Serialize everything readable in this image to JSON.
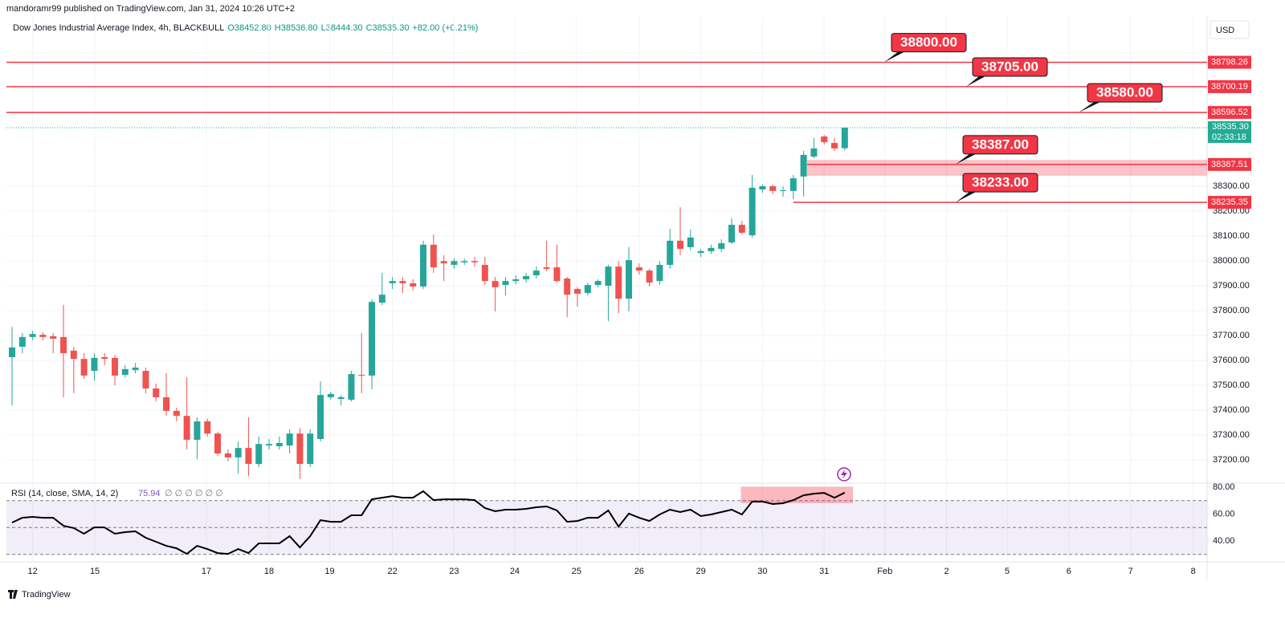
{
  "header": {
    "published": "mandoramr99 published on TradingView.com, Jan 31, 2024 10:26 UTC+2",
    "symbol": "Dow Jones Industrial Average Index, 4h, BLACKBULL",
    "ohlc": [
      "O38452.80",
      "H38536.80",
      "L38444.30",
      "C38535.30",
      "+82.00 (+0.21%)"
    ]
  },
  "currency": "USD",
  "footer": "TradingView",
  "chart_data": [
    {
      "type": "candlestick",
      "up_color": "#26a69a",
      "down_color": "#ef5350",
      "open": [
        37613,
        37655,
        37694,
        37703,
        37697,
        37694,
        37639,
        37606,
        37558,
        37613,
        37610,
        37542,
        37561,
        37558,
        37487,
        37452,
        37397,
        37377,
        37281,
        37355,
        37306,
        37226,
        37210,
        37248,
        37184,
        37258,
        37255,
        37258,
        37306,
        37184,
        37284,
        37452,
        37445,
        37442,
        37542,
        37539,
        37832,
        37910,
        37919,
        37910,
        37897,
        38065,
        37999,
        37984,
        37994,
        37999,
        37984,
        37919,
        37903,
        37919,
        37926,
        37942,
        37974,
        37974,
        37929,
        37887,
        37871,
        37903,
        37900,
        37977,
        37848,
        37974,
        37961,
        37919,
        37984,
        38081,
        38055,
        38032,
        38039,
        38048,
        38074,
        38145,
        38103,
        38287,
        38300,
        38281,
        38281,
        38339,
        38419,
        38500,
        38474,
        38452.8
      ],
      "high": [
        37735,
        37710,
        37719,
        37713,
        37710,
        37823,
        37655,
        37629,
        37629,
        37629,
        37623,
        37581,
        37590,
        37571,
        37506,
        37548,
        37410,
        37532,
        37371,
        37365,
        37313,
        37242,
        37274,
        37371,
        37294,
        37284,
        37294,
        37323,
        37329,
        37323,
        37516,
        37474,
        37461,
        37558,
        37710,
        37845,
        37952,
        37935,
        37935,
        37926,
        38081,
        38106,
        38023,
        38010,
        38010,
        38016,
        38016,
        37935,
        37935,
        37942,
        37952,
        37977,
        38081,
        38065,
        37935,
        37894,
        37913,
        37926,
        37984,
        37999,
        38055,
        37990,
        37968,
        37999,
        38129,
        38216,
        38126,
        38048,
        38065,
        38087,
        38171,
        38161,
        38345,
        38306,
        38306,
        38300,
        38345,
        38442,
        38494,
        38506,
        38494,
        38536.8
      ],
      "low": [
        37419,
        37629,
        37681,
        37681,
        37629,
        37452,
        37468,
        37526,
        37519,
        37581,
        37500,
        37532,
        37548,
        37468,
        37435,
        37377,
        37355,
        37242,
        37203,
        37294,
        37216,
        37194,
        37145,
        37135,
        37171,
        37242,
        37242,
        37226,
        37123,
        37171,
        37274,
        37442,
        37419,
        37435,
        37468,
        37484,
        37823,
        37887,
        37871,
        37881,
        37887,
        37952,
        37919,
        37968,
        37984,
        37977,
        37903,
        37797,
        37861,
        37906,
        37913,
        37929,
        37958,
        37913,
        37774,
        37816,
        37861,
        37894,
        37758,
        37790,
        37797,
        37945,
        37897,
        37903,
        37968,
        38023,
        38042,
        38016,
        38029,
        38035,
        38068,
        38106,
        38094,
        38274,
        38268,
        38258,
        38248,
        38258,
        38413,
        38468,
        38442,
        38444.3
      ],
      "close": [
        37652,
        37694,
        37706,
        37694,
        37687,
        37629,
        37606,
        37539,
        37610,
        37606,
        37539,
        37565,
        37571,
        37487,
        37452,
        37397,
        37377,
        37281,
        37355,
        37306,
        37226,
        37210,
        37248,
        37184,
        37264,
        37264,
        37268,
        37306,
        37184,
        37306,
        37461,
        37465,
        37452,
        37545,
        37539,
        37835,
        37864,
        37919,
        37910,
        37897,
        38065,
        37974,
        37990,
        37999,
        37999,
        37994,
        37919,
        37894,
        37919,
        37926,
        37939,
        37961,
        37968,
        37919,
        37864,
        37868,
        37903,
        37919,
        37977,
        37848,
        38003,
        37961,
        37913,
        37984,
        38081,
        38048,
        38094,
        38039,
        38052,
        38071,
        38145,
        38113,
        38294,
        38300,
        38281,
        38284,
        38332,
        38426,
        38452,
        38477,
        38452,
        38535.3
      ],
      "last_price_label": "38535.30",
      "countdown": "02:33:18",
      "last_color": "#22ab94",
      "ylim": [
        37113,
        38984
      ],
      "yticks": [
        {
          "value": 37200,
          "label": "37200.00"
        },
        {
          "value": 37300,
          "label": "37300.00"
        },
        {
          "value": 37400,
          "label": "37400.00"
        },
        {
          "value": 37500,
          "label": "37500.00"
        },
        {
          "value": 37600,
          "label": "37600.00"
        },
        {
          "value": 37700,
          "label": "37700.00"
        },
        {
          "value": 37800,
          "label": "37800.00"
        },
        {
          "value": 37900,
          "label": "37900.00"
        },
        {
          "value": 38000,
          "label": "38000.00"
        },
        {
          "value": 38100,
          "label": "38100.00"
        },
        {
          "value": 38200,
          "label": "38200.00"
        },
        {
          "value": 38300,
          "label": "38300.00"
        }
      ],
      "xlim": [
        -0.55,
        116.25
      ],
      "xticks": [
        {
          "value": 2,
          "label": "12"
        },
        {
          "value": 8.05,
          "label": "15"
        },
        {
          "value": 18.9,
          "label": "17"
        },
        {
          "value": 25,
          "label": "18"
        },
        {
          "value": 30.9,
          "label": "19"
        },
        {
          "value": 37,
          "label": "22"
        },
        {
          "value": 43,
          "label": "23"
        },
        {
          "value": 48.9,
          "label": "24"
        },
        {
          "value": 54.9,
          "label": "25"
        },
        {
          "value": 61,
          "label": "26"
        },
        {
          "value": 67,
          "label": "29"
        },
        {
          "value": 73,
          "label": "30"
        },
        {
          "value": 79,
          "label": "31"
        },
        {
          "value": 84.9,
          "label": "Feb"
        },
        {
          "value": 90.9,
          "label": "2"
        },
        {
          "value": 96.8,
          "label": "5"
        },
        {
          "value": 102.8,
          "label": "6"
        },
        {
          "value": 108.8,
          "label": "7"
        },
        {
          "value": 114.9,
          "label": "8"
        }
      ],
      "level_color": "#f23645",
      "levels": [
        {
          "value": 38798.26,
          "callout": "38800.00"
        },
        {
          "value": 38700.19,
          "callout": "38705.00"
        },
        {
          "value": 38596.52,
          "callout": "38580.00"
        },
        {
          "value": 38387.51,
          "callout": "38387.00"
        },
        {
          "value": 38235.35,
          "callout": "38233.00"
        }
      ],
      "zone": {
        "low": 38342,
        "high": 38406
      }
    },
    {
      "type": "line",
      "title": "RSI (14, close, SMA, 14, 2)",
      "current_label": "75.94",
      "inputs": "∅ ∅ ∅ ∅ ∅ ∅",
      "color": "#000000",
      "values": [
        53.7,
        57.3,
        57.9,
        57.3,
        57.3,
        51.3,
        49.6,
        45.4,
        50.1,
        50.1,
        45.4,
        46.6,
        47.2,
        42.4,
        39.4,
        36.4,
        34.6,
        30.4,
        36.4,
        34.0,
        31.0,
        30.4,
        34.0,
        31.0,
        38.2,
        38.2,
        38.2,
        43.6,
        35.2,
        43.6,
        55.5,
        54.3,
        54.3,
        59.1,
        59.1,
        71.0,
        72.2,
        73.4,
        72.2,
        72.2,
        77.0,
        70.4,
        71.0,
        71.0,
        71.0,
        70.4,
        64.5,
        62.1,
        63.3,
        63.3,
        63.9,
        65.1,
        65.7,
        62.7,
        54.3,
        54.9,
        57.3,
        57.3,
        62.7,
        50.7,
        60.3,
        57.3,
        54.9,
        59.7,
        63.3,
        61.5,
        63.3,
        58.5,
        59.7,
        61.5,
        63.3,
        59.7,
        69.3,
        69.3,
        67.5,
        68.1,
        70.4,
        74.0,
        75.2,
        75.8,
        72.2,
        75.94
      ],
      "ylim": [
        24.5,
        82.4
      ],
      "yticks": [
        {
          "value": 40,
          "label": "40.00"
        },
        {
          "value": 60,
          "label": "60.00"
        },
        {
          "value": 80,
          "label": "80.00"
        }
      ],
      "bands": [
        30,
        50,
        70
      ],
      "highlight": {
        "x": [
          70.9,
          81.8
        ],
        "y": [
          68.2,
          80.4
        ]
      }
    }
  ]
}
